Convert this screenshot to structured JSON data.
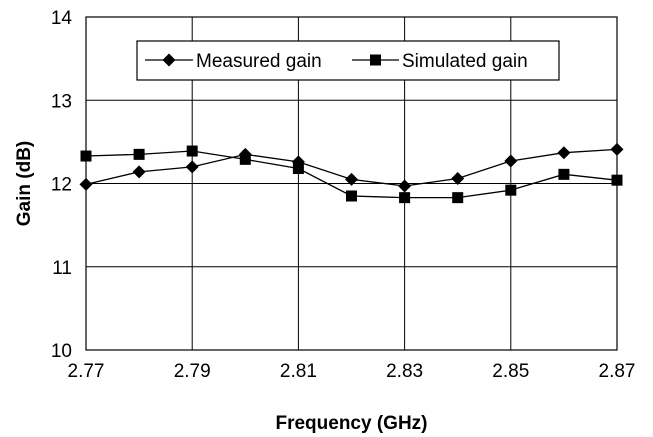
{
  "chart_data": {
    "type": "line",
    "xlabel": "Frequency (GHz)",
    "ylabel": "Gain (dB)",
    "xlim": [
      2.77,
      2.87
    ],
    "ylim": [
      10,
      14
    ],
    "x_ticks": [
      "2.77",
      "2.79",
      "2.81",
      "2.83",
      "2.85",
      "2.87"
    ],
    "y_ticks": [
      "10",
      "11",
      "12",
      "13",
      "14"
    ],
    "grid": true,
    "legend": "top-center",
    "x": [
      2.77,
      2.78,
      2.79,
      2.8,
      2.81,
      2.82,
      2.83,
      2.84,
      2.85,
      2.86,
      2.87
    ],
    "series": [
      {
        "name": "Measured gain",
        "marker": "diamond",
        "values": [
          11.99,
          12.14,
          12.2,
          12.35,
          12.26,
          12.05,
          11.97,
          12.06,
          12.27,
          12.37,
          12.41
        ]
      },
      {
        "name": "Simulated gain",
        "marker": "square",
        "values": [
          12.33,
          12.35,
          12.39,
          12.29,
          12.18,
          11.85,
          11.83,
          11.83,
          11.92,
          12.11,
          12.04
        ]
      }
    ]
  }
}
